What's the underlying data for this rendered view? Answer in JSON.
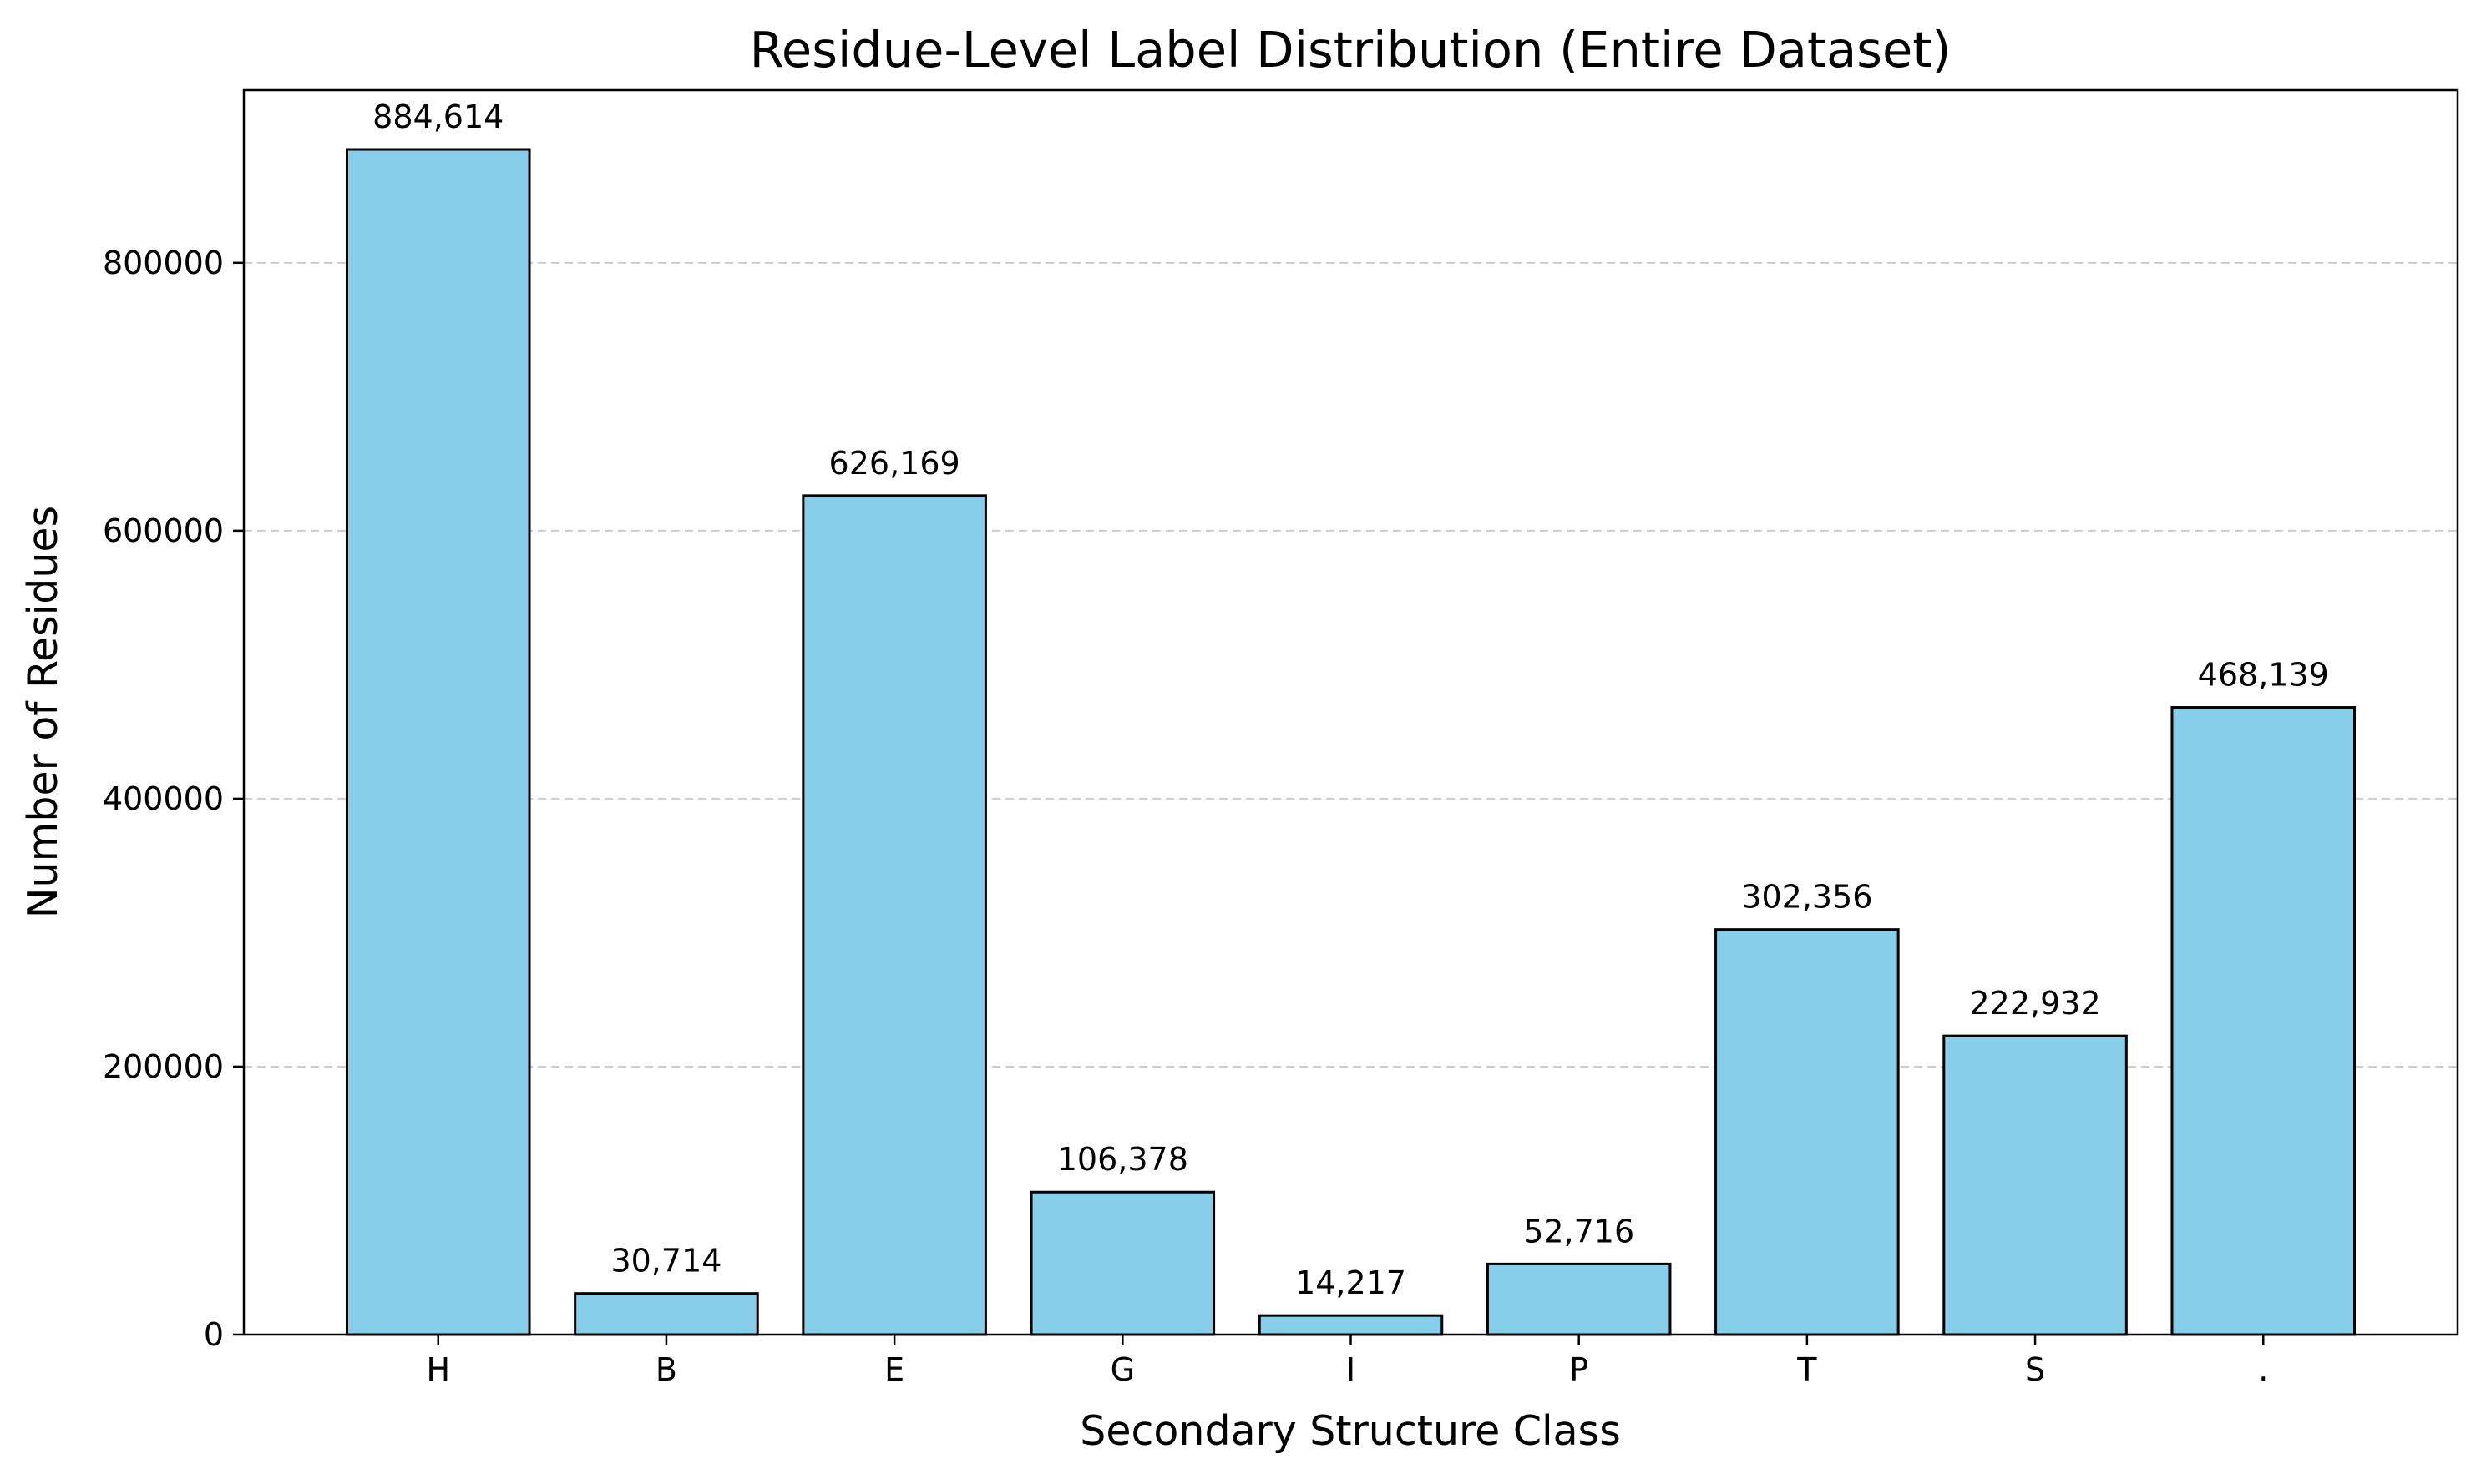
{
  "chart_data": {
    "type": "bar",
    "title": "Residue-Level Label Distribution (Entire Dataset)",
    "xlabel": "Secondary Structure Class",
    "ylabel": "Number of Residues",
    "categories": [
      "H",
      "B",
      "E",
      "G",
      "I",
      "P",
      "T",
      "S",
      "."
    ],
    "values": [
      884614,
      30714,
      626169,
      106378,
      14217,
      52716,
      302356,
      222932,
      468139
    ],
    "value_labels": [
      "884,614",
      "30,714",
      "626,169",
      "106,378",
      "14,217",
      "52,716",
      "302,356",
      "222,932",
      "468,139"
    ],
    "ylim": [
      0,
      928845
    ],
    "yticks": [
      0,
      200000,
      400000,
      600000,
      800000
    ],
    "ytick_labels": [
      "0",
      "200000",
      "400000",
      "600000",
      "800000"
    ],
    "grid": "y-dashed",
    "legend": "none",
    "colors": {
      "bar_fill": "#87ceeb",
      "bar_edge": "#000000",
      "grid": "#cccccc",
      "axes": "#000000"
    }
  }
}
